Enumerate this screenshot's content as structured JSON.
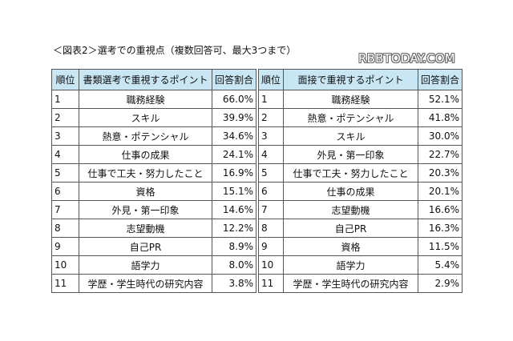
{
  "caption": "＜図表2＞選考での重視点（複数回答可、最大3つまで）",
  "watermark": "RBBTODAY.COM",
  "left_table": {
    "headers": {
      "rank": "順位",
      "item": "書類選考で重視するポイント",
      "pct": "回答割合"
    },
    "rows": [
      {
        "rank": "1",
        "item": "職務経験",
        "pct": "66.0%"
      },
      {
        "rank": "2",
        "item": "スキル",
        "pct": "39.9%"
      },
      {
        "rank": "3",
        "item": "熱意・ポテンシャル",
        "pct": "34.6%"
      },
      {
        "rank": "4",
        "item": "仕事の成果",
        "pct": "24.1%"
      },
      {
        "rank": "5",
        "item": "仕事で工夫・努力したこと",
        "pct": "16.9%"
      },
      {
        "rank": "6",
        "item": "資格",
        "pct": "15.1%"
      },
      {
        "rank": "7",
        "item": "外見・第一印象",
        "pct": "14.6%"
      },
      {
        "rank": "8",
        "item": "志望動機",
        "pct": "12.2%"
      },
      {
        "rank": "9",
        "item": "自己PR",
        "pct": "8.9%"
      },
      {
        "rank": "10",
        "item": "語学力",
        "pct": "8.0%"
      },
      {
        "rank": "11",
        "item": "学歴・学生時代の研究内容",
        "pct": "3.8%"
      }
    ]
  },
  "right_table": {
    "headers": {
      "rank": "順位",
      "item": "面接で重視するポイント",
      "pct": "回答割合"
    },
    "rows": [
      {
        "rank": "1",
        "item": "職務経験",
        "pct": "52.1%"
      },
      {
        "rank": "2",
        "item": "熱意・ポテンシャル",
        "pct": "41.8%"
      },
      {
        "rank": "3",
        "item": "スキル",
        "pct": "30.0%"
      },
      {
        "rank": "4",
        "item": "外見・第一印象",
        "pct": "22.7%"
      },
      {
        "rank": "5",
        "item": "仕事で工夫・努力したこと",
        "pct": "20.3%"
      },
      {
        "rank": "6",
        "item": "仕事の成果",
        "pct": "20.1%"
      },
      {
        "rank": "7",
        "item": "志望動機",
        "pct": "16.6%"
      },
      {
        "rank": "8",
        "item": "自己PR",
        "pct": "16.3%"
      },
      {
        "rank": "9",
        "item": "資格",
        "pct": "11.5%"
      },
      {
        "rank": "10",
        "item": "語学力",
        "pct": "5.4%"
      },
      {
        "rank": "11",
        "item": "学歴・学生時代の研究内容",
        "pct": "2.9%"
      }
    ]
  }
}
